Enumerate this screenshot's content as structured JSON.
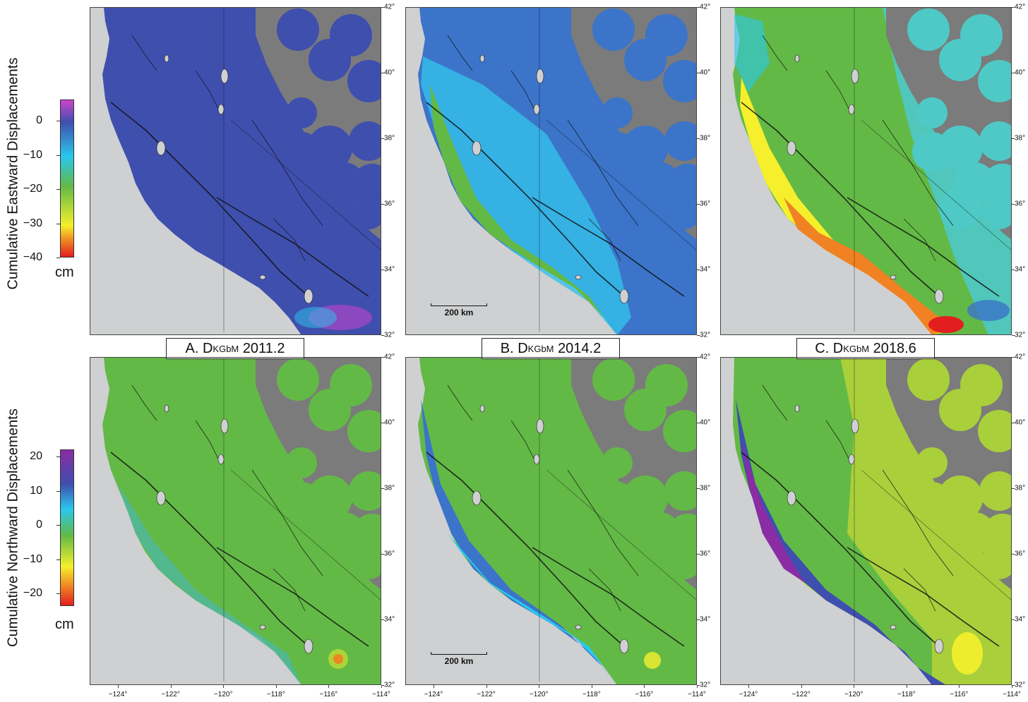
{
  "rows": [
    {
      "ylabel": "Cumulative Eastward Displacements",
      "colorbar": {
        "ticks": [
          "0",
          "−10",
          "−20",
          "−30",
          "−40"
        ],
        "unit": "cm"
      }
    },
    {
      "ylabel": "Cumulative Northward Displacements",
      "colorbar": {
        "ticks": [
          "20",
          "10",
          "0",
          "−10",
          "−20"
        ],
        "unit": "cm"
      }
    }
  ],
  "panels": [
    {
      "id": "A",
      "prefix": "A. D",
      "subscript": "KGbM",
      "epoch": "2011.2"
    },
    {
      "id": "B",
      "prefix": "B. D",
      "subscript": "KGbM",
      "epoch": "2014.2"
    },
    {
      "id": "C",
      "prefix": "C. D",
      "subscript": "KGbM",
      "epoch": "2018.6"
    }
  ],
  "lat_labels": [
    "42°",
    "40°",
    "38°",
    "36°",
    "34°",
    "32°"
  ],
  "lon_labels": [
    "−124°",
    "−122°",
    "−120°",
    "−118°",
    "−116°",
    "−114°"
  ],
  "scale_bar": "200 km",
  "colors": {
    "ocean": "#cfd0d2",
    "nodata": "#7b7b7b",
    "east_scale": [
      "#cc44cc",
      "#3f4fae",
      "#29c8ee",
      "#63b946",
      "#f5ef2c",
      "#f08223",
      "#e31e1e"
    ],
    "north_scale": [
      "#8a2ca3",
      "#3f4fae",
      "#29c8ee",
      "#63b946",
      "#f5ef2c",
      "#f08223",
      "#e31e1e"
    ]
  }
}
